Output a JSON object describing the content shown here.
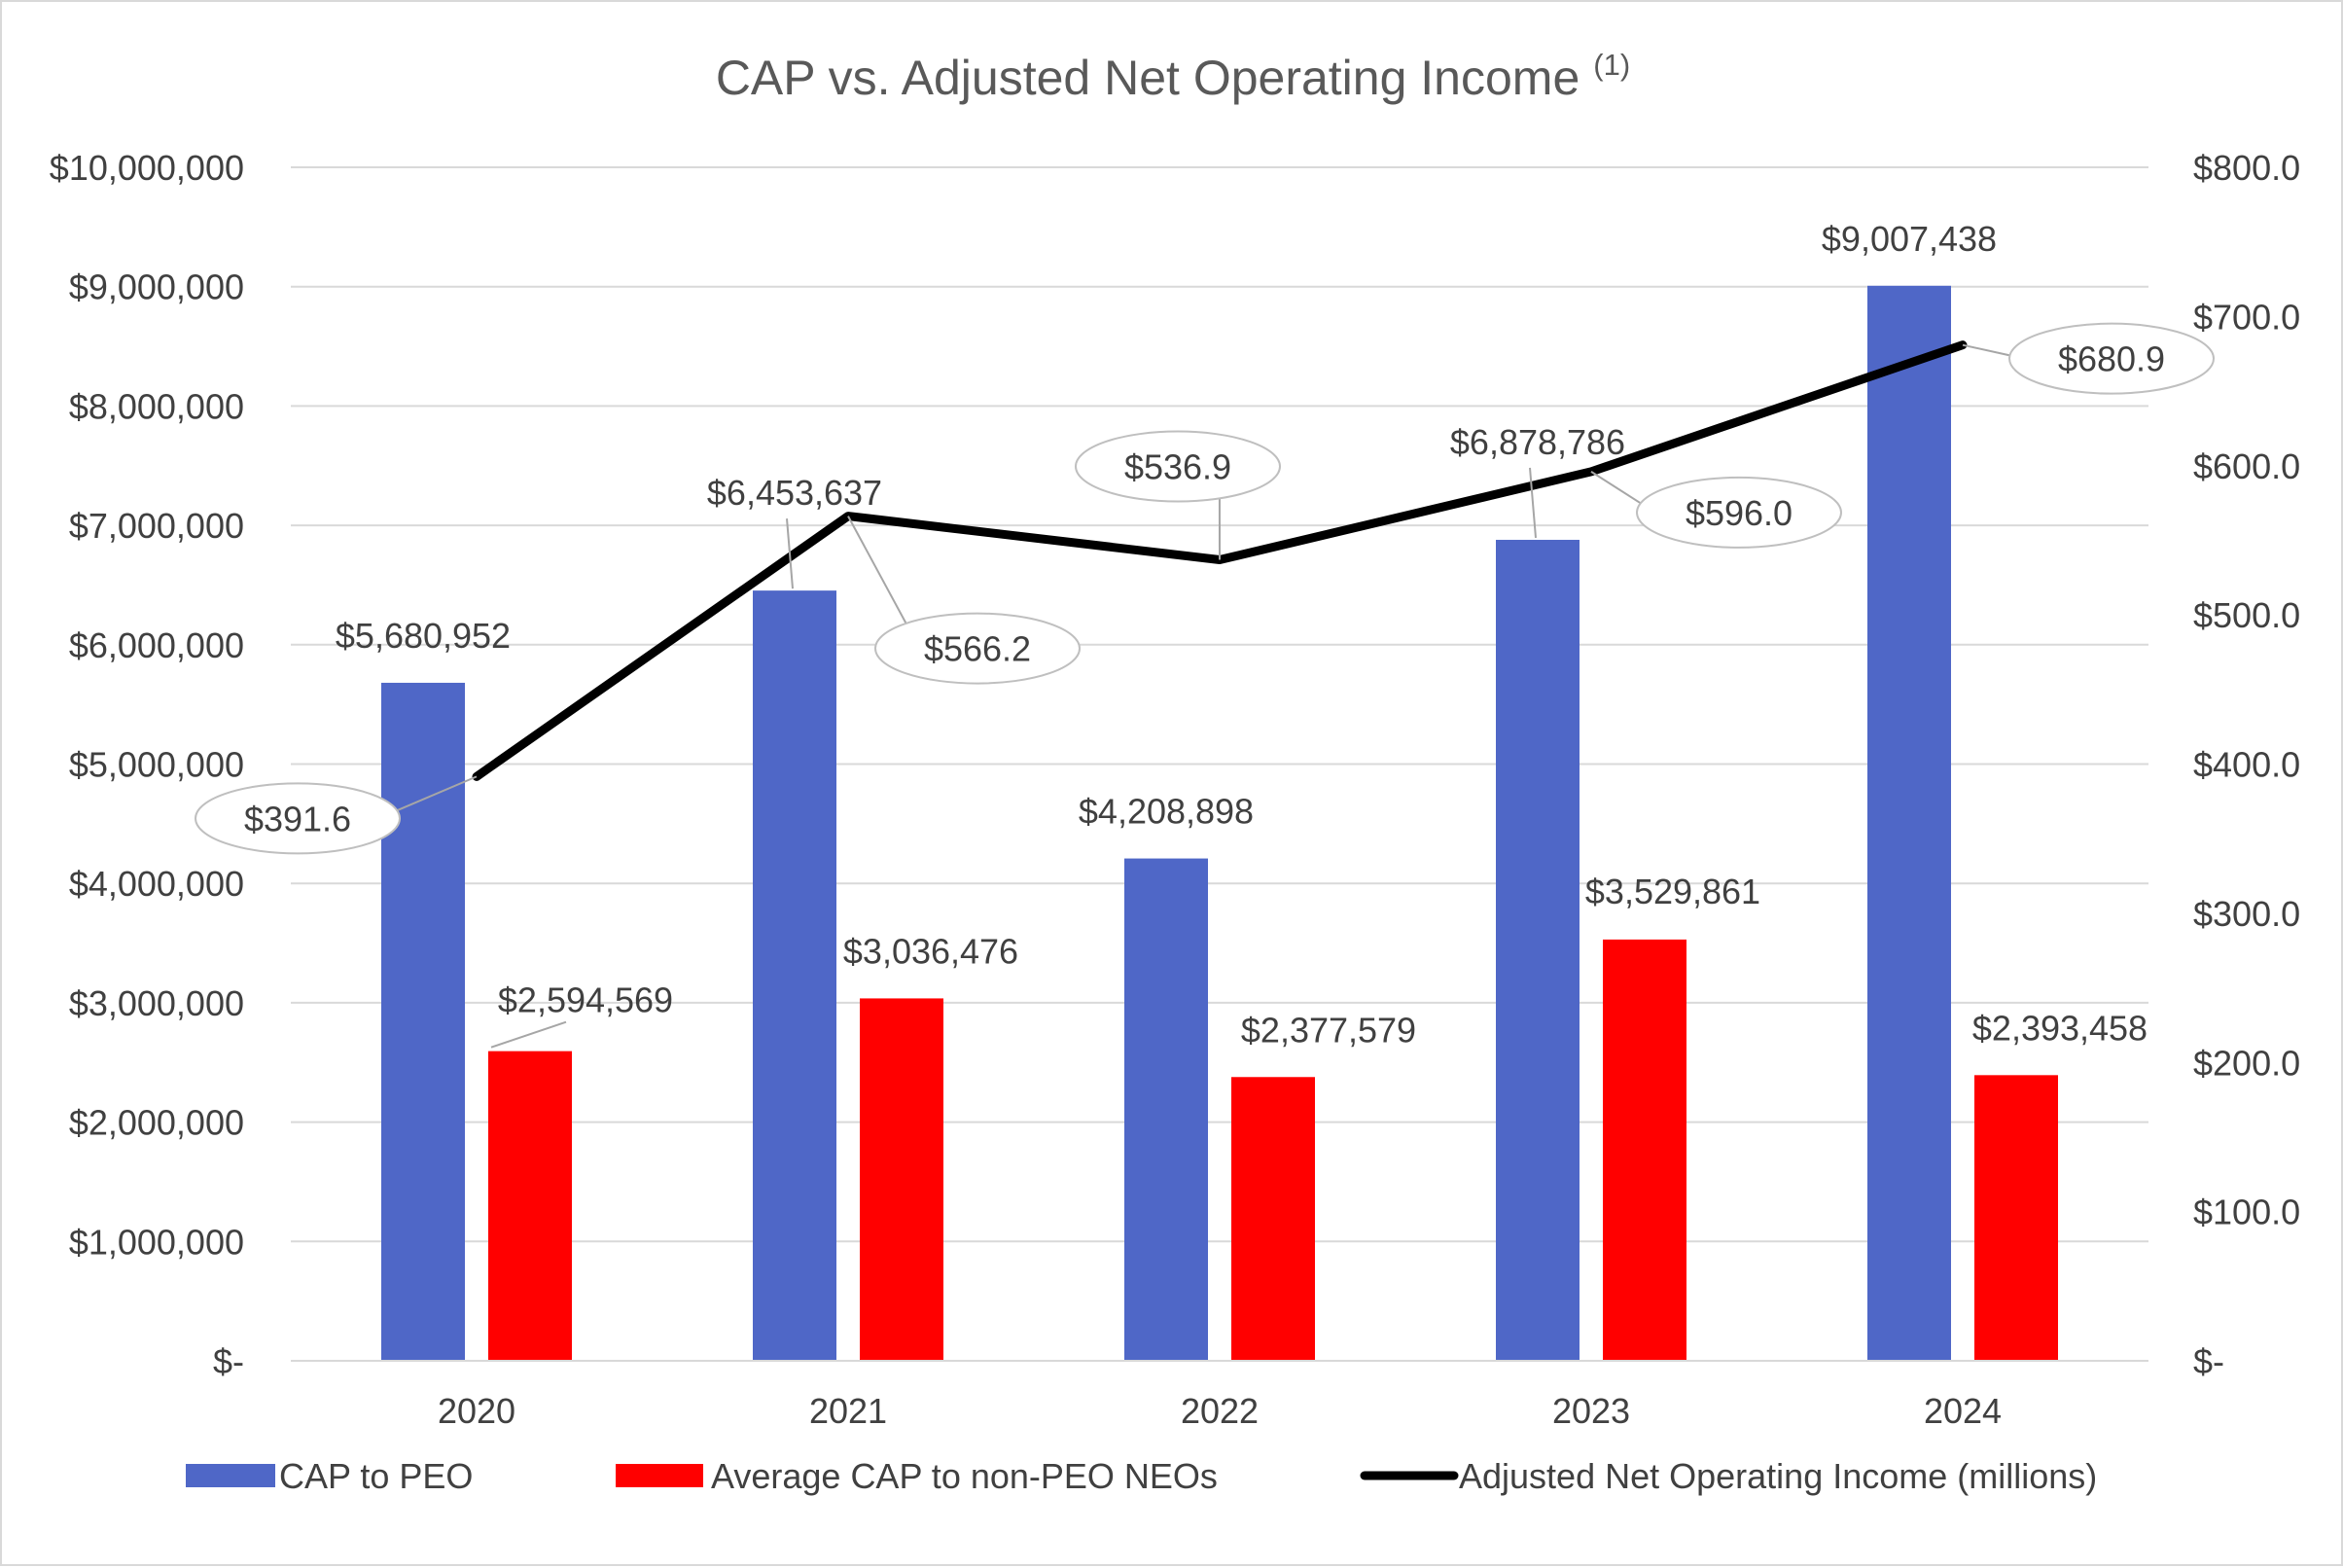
{
  "chart_data": {
    "type": "bar",
    "title": "CAP vs. Adjusted Net Operating Income",
    "title_superscript": "(1)",
    "categories": [
      "2020",
      "2021",
      "2022",
      "2023",
      "2024"
    ],
    "y_left": {
      "min": 0,
      "max": 10000000,
      "step": 1000000,
      "tick_labels": [
        "$-",
        "$1,000,000",
        "$2,000,000",
        "$3,000,000",
        "$4,000,000",
        "$5,000,000",
        "$6,000,000",
        "$7,000,000",
        "$8,000,000",
        "$9,000,000",
        "$10,000,000"
      ]
    },
    "y_right": {
      "min": 0,
      "max": 800,
      "step": 100,
      "tick_labels": [
        "$-",
        "$100.0",
        "$200.0",
        "$300.0",
        "$400.0",
        "$500.0",
        "$600.0",
        "$700.0",
        "$800.0"
      ]
    },
    "grid": true,
    "legend_position": "bottom",
    "series": [
      {
        "name": "CAP to PEO",
        "kind": "bar",
        "axis": "left",
        "color": "#4f67c7",
        "values": [
          5680952,
          6453637,
          4208898,
          6878786,
          9007438
        ],
        "labels": [
          "$5,680,952",
          "$6,453,637",
          "$4,208,898",
          "$6,878,786",
          "$9,007,438"
        ]
      },
      {
        "name": "Average CAP to non-PEO NEOs",
        "kind": "bar",
        "axis": "left",
        "color": "#ff0000",
        "values": [
          2594569,
          3036476,
          2377579,
          3529861,
          2393458
        ],
        "labels": [
          "$2,594,569",
          "$3,036,476",
          "$2,377,579",
          "$3,529,861",
          "$2,393,458"
        ]
      },
      {
        "name": "Adjusted Net Operating Income (millions)",
        "kind": "line",
        "axis": "right",
        "color": "#000000",
        "values": [
          391.6,
          566.2,
          536.9,
          596.0,
          680.9
        ],
        "labels": [
          "$391.6",
          "$566.2",
          "$536.9",
          "$596.0",
          "$680.9"
        ]
      }
    ]
  }
}
